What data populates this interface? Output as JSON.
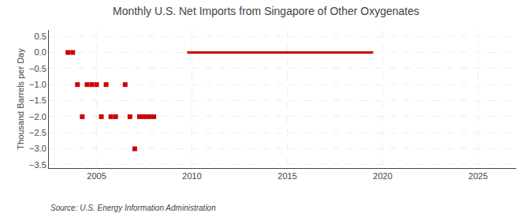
{
  "chart_data": {
    "type": "scatter",
    "title": "Monthly U.S. Net Imports from Singapore of Other Oxygenates",
    "ylabel": "Thousand Barrels per Day",
    "annotations": [
      "Source: U.S. Energy Information Administration"
    ],
    "xlim": [
      2002.5,
      2027
    ],
    "xticks": [
      2005,
      2010,
      2015,
      2020,
      2025
    ],
    "ylim": [
      -3.6,
      0.7
    ],
    "yticks": [
      0.5,
      {
        "value": 0.0,
        "label": "0.0"
      },
      {
        "value": -0.5,
        "label": "−0.5"
      },
      {
        "value": -1.0,
        "label": "−1.0"
      },
      {
        "value": -1.5,
        "label": "−1.5"
      },
      {
        "value": -2.0,
        "label": "−2.0"
      },
      {
        "value": -2.5,
        "label": "−2.5"
      },
      {
        "value": -3.0,
        "label": "−3.0"
      },
      {
        "value": -3.5,
        "label": "−3.5"
      }
    ],
    "grid": true,
    "series": [
      {
        "type": "scatter",
        "marker": "square",
        "color": "#cc0000",
        "x": [
          2003.5,
          2003.75,
          2004.0,
          2004.25,
          2004.5,
          2004.75,
          2005.0,
          2005.25,
          2005.5,
          2005.75,
          2006.0,
          2006.5,
          2006.75,
          2007.0,
          2007.25,
          2007.5,
          2007.75,
          2008.0
        ],
        "values": [
          0.0,
          0.0,
          -1.0,
          -2.0,
          -1.0,
          -1.0,
          -1.0,
          -2.0,
          -1.0,
          -2.0,
          -2.0,
          -1.0,
          -2.0,
          -3.0,
          -2.0,
          -2.0,
          -2.0,
          -2.0
        ]
      },
      {
        "type": "line",
        "line_style": "solid",
        "color": "#cc0000",
        "x": [
          2009.75,
          2019.5
        ],
        "values": [
          0.0,
          0.0
        ]
      }
    ]
  }
}
